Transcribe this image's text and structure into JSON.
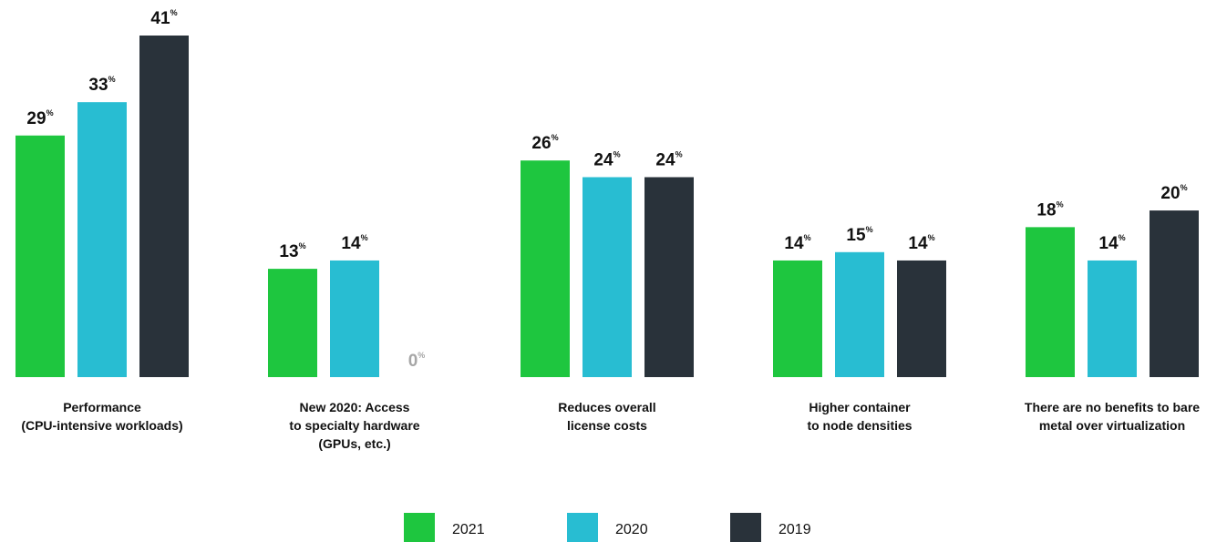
{
  "chart_data": {
    "type": "bar",
    "categories": [
      [
        "Performance",
        "(CPU-intensive workloads)"
      ],
      [
        "New 2020: Access",
        "to specialty hardware",
        "(GPUs, etc.)"
      ],
      [
        "Reduces overall",
        "license costs"
      ],
      [
        "Higher container",
        "to node densities"
      ],
      [
        "There are no benefits to bare",
        "metal over virtualization"
      ]
    ],
    "series": [
      {
        "name": "2021",
        "color": "#1ec63f",
        "values": [
          29,
          13,
          26,
          14,
          18
        ]
      },
      {
        "name": "2020",
        "color": "#28bdd2",
        "values": [
          33,
          14,
          24,
          15,
          14
        ]
      },
      {
        "name": "2019",
        "color": "#29323a",
        "values": [
          41,
          0,
          24,
          14,
          20
        ]
      }
    ],
    "unit": "%",
    "ylim": [
      0,
      41
    ],
    "value_label_color": "#111111",
    "zero_label_color": "#a6a6a6",
    "legend_position": "bottom-center",
    "grid": false
  }
}
